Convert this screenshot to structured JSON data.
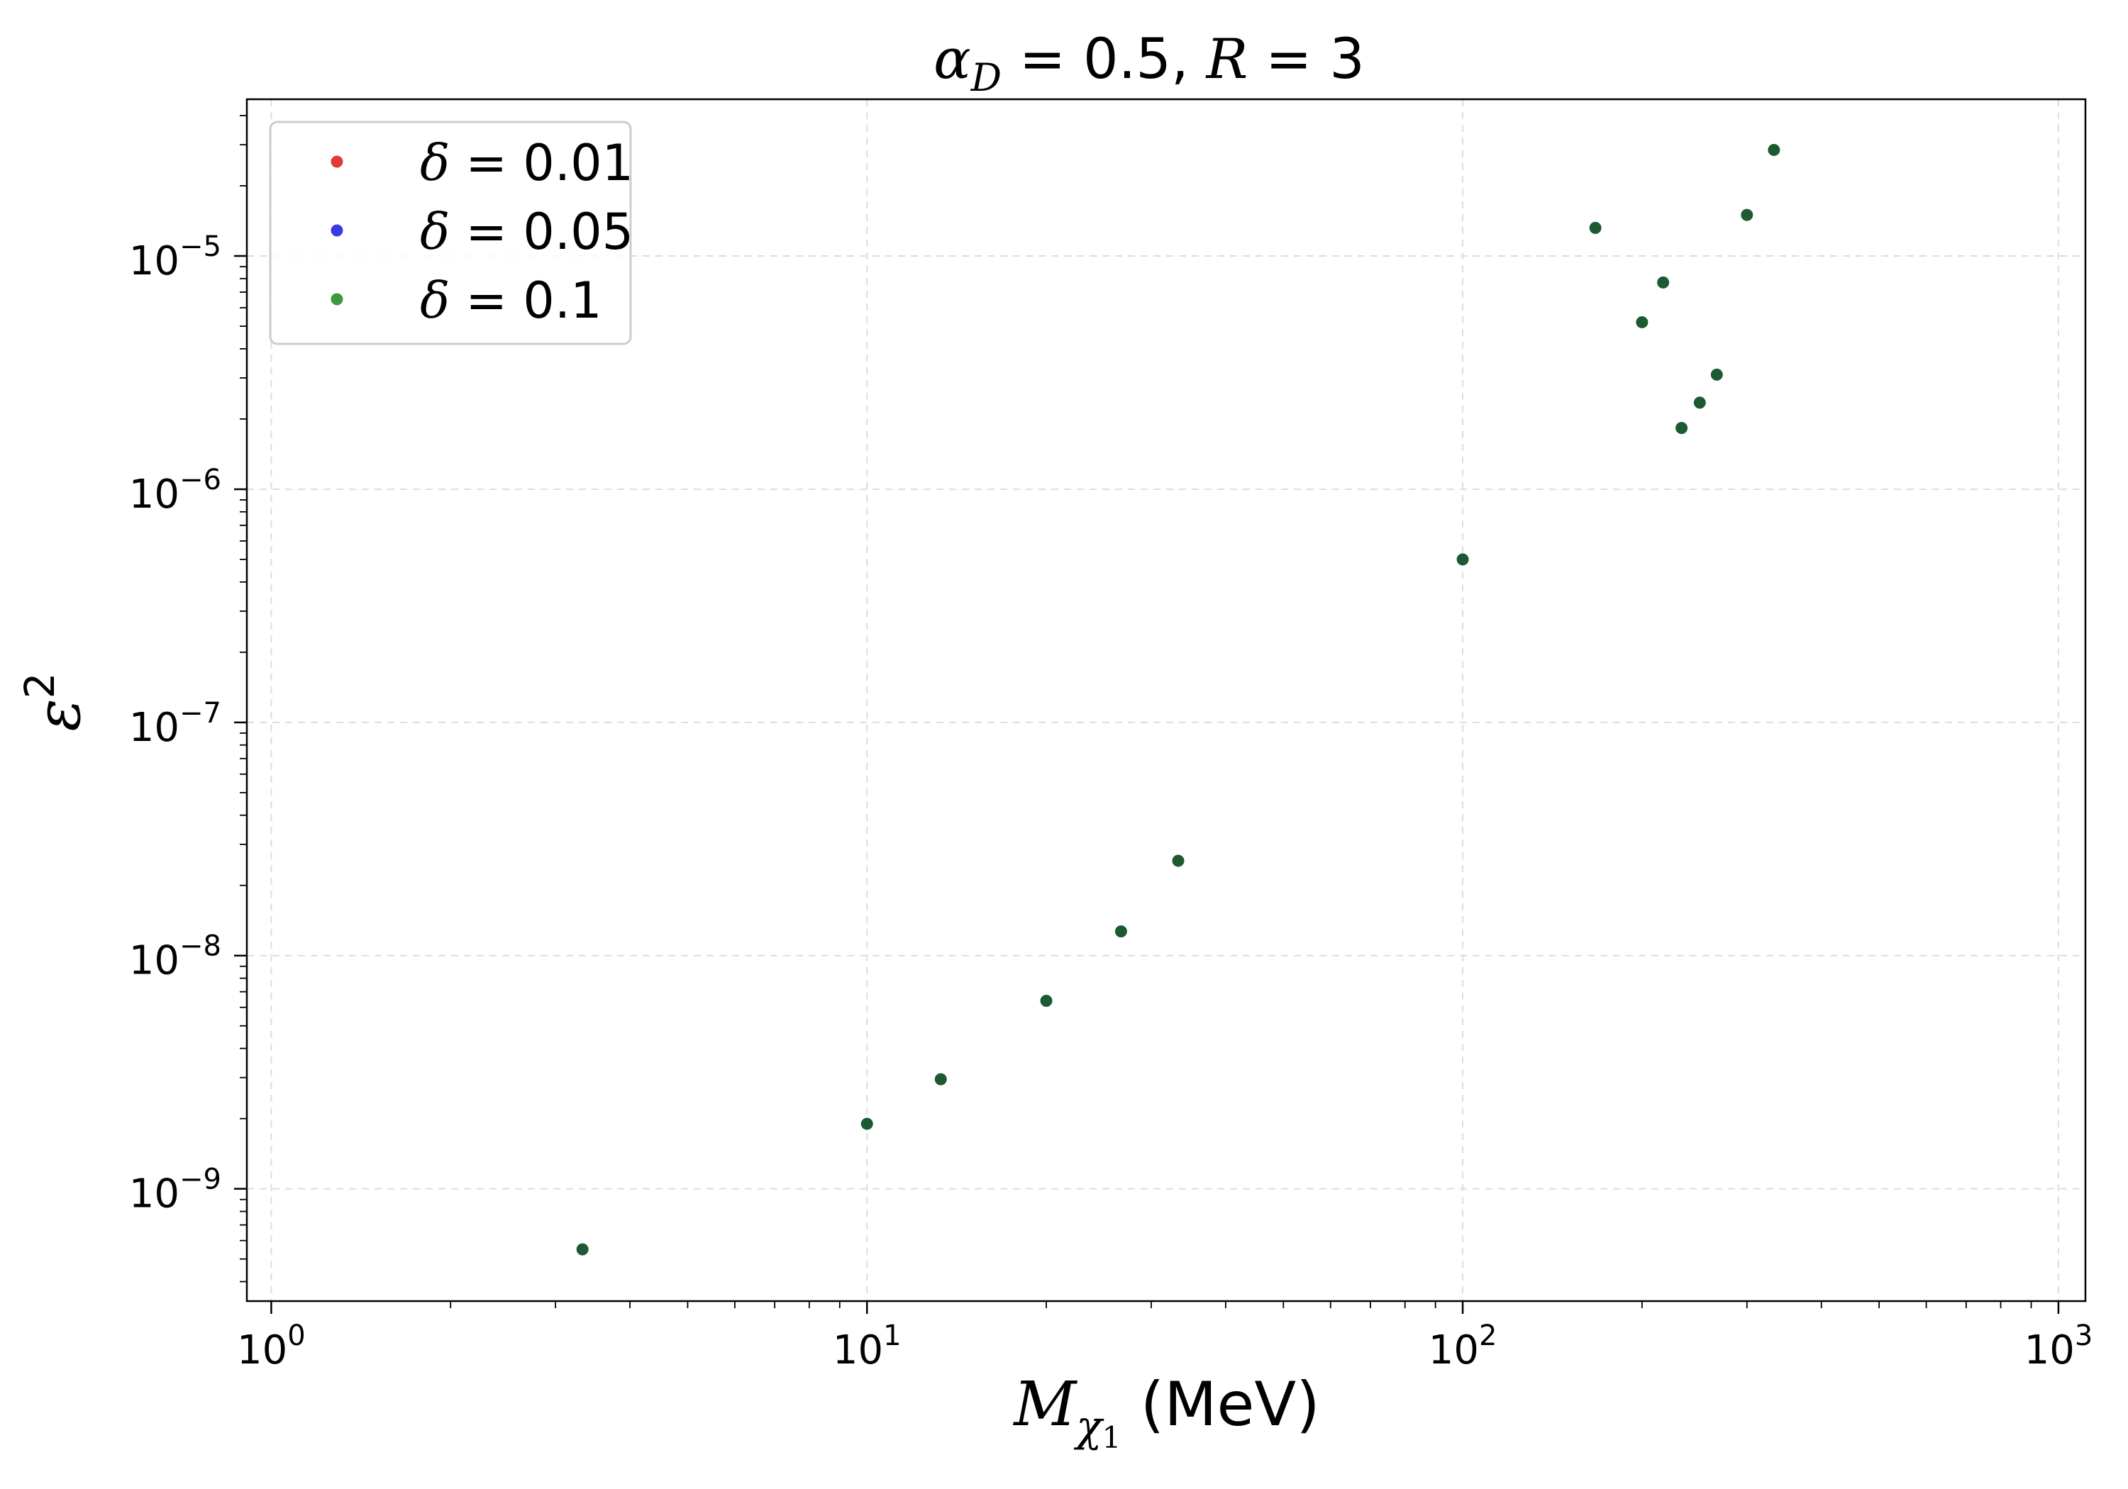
{
  "chart_data": {
    "type": "scatter",
    "title": {
      "text": "α",
      "sub": "D",
      "rest": " = 0.5, ",
      "italic2": "R",
      "rest2": " = 3"
    },
    "xlabel": {
      "main": "M",
      "sub": "χ",
      "subsub": "1",
      "unit": " (MeV)"
    },
    "ylabel": {
      "main": "ε",
      "sup": "2"
    },
    "xscale": "log",
    "yscale": "log",
    "xlim": [
      0.91,
      1110
    ],
    "ylim": [
      3.3e-10,
      4.7e-05
    ],
    "grid": true,
    "legend": "top-left",
    "x_ticks": [
      {
        "value": 1,
        "base": "10",
        "exp": "0"
      },
      {
        "value": 10,
        "base": "10",
        "exp": "1"
      },
      {
        "value": 100,
        "base": "10",
        "exp": "2"
      },
      {
        "value": 1000,
        "base": "10",
        "exp": "3"
      }
    ],
    "y_ticks": [
      {
        "value": 1e-09,
        "base": "10",
        "exp": "−9"
      },
      {
        "value": 1e-08,
        "base": "10",
        "exp": "−8"
      },
      {
        "value": 1e-07,
        "base": "10",
        "exp": "−7"
      },
      {
        "value": 1e-06,
        "base": "10",
        "exp": "−6"
      },
      {
        "value": 1e-05,
        "base": "10",
        "exp": "−5"
      }
    ],
    "series": [
      {
        "name": "δ = 0.01",
        "symbol": "δ",
        "value_label": " = 0.01",
        "color": "#e03a3a",
        "points": []
      },
      {
        "name": "δ = 0.05",
        "symbol": "δ",
        "value_label": " = 0.05",
        "color": "#3a3ae0",
        "points": []
      },
      {
        "name": "δ = 0.1",
        "symbol": "δ",
        "value_label": " = 0.1",
        "color": "#3c9a3c",
        "marker_color": "#1c5a32",
        "points": [
          [
            3.33,
            5.5e-10
          ],
          [
            10.0,
            1.9e-09
          ],
          [
            13.3,
            2.95e-09
          ],
          [
            20.0,
            6.4e-09
          ],
          [
            26.7,
            1.27e-08
          ],
          [
            33.3,
            2.55e-08
          ],
          [
            100,
            5e-07
          ],
          [
            167,
            1.32e-05
          ],
          [
            200,
            5.2e-06
          ],
          [
            217,
            7.7e-06
          ],
          [
            233,
            1.83e-06
          ],
          [
            250,
            2.35e-06
          ],
          [
            267,
            3.1e-06
          ],
          [
            300,
            1.5e-05
          ],
          [
            333,
            2.85e-05
          ]
        ]
      }
    ]
  }
}
